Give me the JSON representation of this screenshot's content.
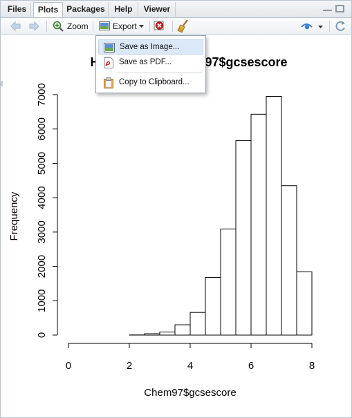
{
  "tabs": [
    {
      "label": "Files",
      "active": false
    },
    {
      "label": "Plots",
      "active": true
    },
    {
      "label": "Packages",
      "active": false
    },
    {
      "label": "Help",
      "active": false
    },
    {
      "label": "Viewer",
      "active": false
    }
  ],
  "toolbar": {
    "zoom_label": "Zoom",
    "export_label": "Export"
  },
  "export_menu": {
    "items": [
      {
        "label": "Save as Image...",
        "icon": "image-icon",
        "highlighted": true
      },
      {
        "label": "Save as PDF...",
        "icon": "pdf-icon",
        "highlighted": false
      },
      {
        "label": "Copy to Clipboard...",
        "icon": "clipboard-icon",
        "highlighted": false
      }
    ]
  },
  "chart_data": {
    "type": "bar",
    "title": "Histogram of Chem97$gcsescore",
    "xlabel": "Chem97$gcsescore",
    "ylabel": "Frequency",
    "bin_edges": [
      0,
      0.5,
      1,
      1.5,
      2,
      2.5,
      3,
      3.5,
      4,
      4.5,
      5,
      5.5,
      6,
      6.5,
      7,
      7.5,
      8
    ],
    "values": [
      0,
      0,
      0,
      0,
      5,
      40,
      90,
      300,
      660,
      1680,
      3090,
      5660,
      6430,
      6950,
      4350,
      1840
    ],
    "xlim": [
      0,
      8
    ],
    "ylim": [
      0,
      7000
    ],
    "x_ticks": [
      "0",
      "2",
      "4",
      "6",
      "8"
    ],
    "y_ticks": [
      "0",
      "1000",
      "2000",
      "3000",
      "4000",
      "5000",
      "6000",
      "7000"
    ],
    "grid": false
  },
  "colors": {
    "bar_fill": "#ffffff",
    "bar_stroke": "#000000",
    "menu_highlight": "#dbe8f7"
  }
}
